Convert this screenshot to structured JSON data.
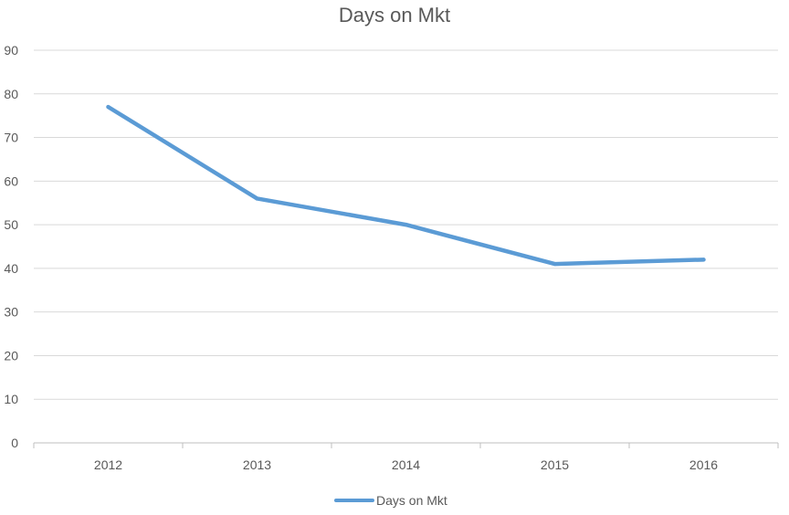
{
  "chart_data": {
    "type": "line",
    "title": "Days on Mkt",
    "xlabel": "",
    "ylabel": "",
    "categories": [
      "2012",
      "2013",
      "2014",
      "2015",
      "2016"
    ],
    "series": [
      {
        "name": "Days on Mkt",
        "values": [
          77,
          56,
          50,
          41,
          42
        ],
        "color": "#5B9BD5"
      }
    ],
    "ylim": [
      0,
      90
    ],
    "yticks": [
      0,
      10,
      20,
      30,
      40,
      50,
      60,
      70,
      80,
      90
    ],
    "grid": true,
    "legend": "bottom"
  }
}
